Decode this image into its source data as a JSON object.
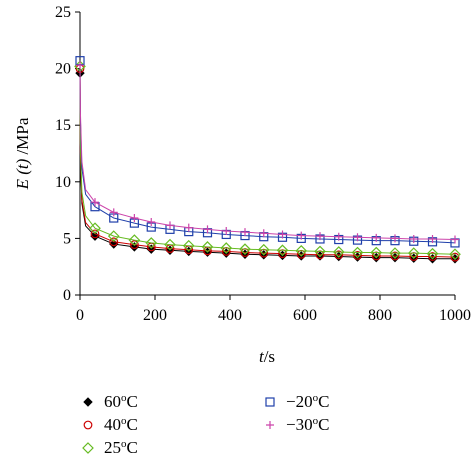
{
  "chart_data": {
    "type": "line",
    "xlabel": {
      "var": "t",
      "unit": "/s"
    },
    "ylabel": {
      "var": "E (t)",
      "unit": " /MPa"
    },
    "xlim": [
      0,
      1000
    ],
    "ylim": [
      0,
      25
    ],
    "xticks": [
      0,
      200,
      400,
      600,
      800,
      1000
    ],
    "yticks": [
      0,
      5,
      10,
      15,
      20,
      25
    ],
    "grid": false,
    "legend_position": "bottom",
    "series": [
      {
        "name": "60oC",
        "label_main": "60",
        "label_sup": "o",
        "label_tail": "C",
        "color": "#000000",
        "marker": "diamond-filled",
        "values": [
          [
            0,
            19.6
          ],
          [
            1,
            12.2
          ],
          [
            5,
            8.1
          ],
          [
            15,
            6.1
          ],
          [
            40,
            5.2
          ],
          [
            90,
            4.5
          ],
          [
            145,
            4.25
          ],
          [
            190,
            4.05
          ],
          [
            240,
            3.95
          ],
          [
            290,
            3.85
          ],
          [
            340,
            3.78
          ],
          [
            390,
            3.7
          ],
          [
            440,
            3.6
          ],
          [
            490,
            3.55
          ],
          [
            540,
            3.5
          ],
          [
            590,
            3.45
          ],
          [
            640,
            3.45
          ],
          [
            690,
            3.4
          ],
          [
            740,
            3.35
          ],
          [
            790,
            3.3
          ],
          [
            840,
            3.3
          ],
          [
            890,
            3.25
          ],
          [
            940,
            3.2
          ],
          [
            1000,
            3.2
          ]
        ]
      },
      {
        "name": "40oC",
        "label_main": "40",
        "label_sup": "o",
        "label_tail": "C",
        "color": "#cc0000",
        "marker": "circle-open",
        "values": [
          [
            0,
            20.0
          ],
          [
            1,
            12.6
          ],
          [
            5,
            8.4
          ],
          [
            15,
            6.4
          ],
          [
            40,
            5.4
          ],
          [
            90,
            4.7
          ],
          [
            145,
            4.45
          ],
          [
            190,
            4.25
          ],
          [
            240,
            4.1
          ],
          [
            290,
            4.0
          ],
          [
            340,
            3.9
          ],
          [
            390,
            3.85
          ],
          [
            440,
            3.75
          ],
          [
            490,
            3.7
          ],
          [
            540,
            3.65
          ],
          [
            590,
            3.6
          ],
          [
            640,
            3.55
          ],
          [
            690,
            3.55
          ],
          [
            740,
            3.5
          ],
          [
            790,
            3.45
          ],
          [
            840,
            3.45
          ],
          [
            890,
            3.4
          ],
          [
            940,
            3.4
          ],
          [
            1000,
            3.35
          ]
        ]
      },
      {
        "name": "25oC",
        "label_main": "25",
        "label_sup": "o",
        "label_tail": "C",
        "color": "#66bb22",
        "marker": "diamond-open",
        "values": [
          [
            0,
            20.2
          ],
          [
            1,
            13.4
          ],
          [
            5,
            9.1
          ],
          [
            15,
            7.0
          ],
          [
            40,
            5.9
          ],
          [
            90,
            5.2
          ],
          [
            145,
            4.85
          ],
          [
            190,
            4.6
          ],
          [
            240,
            4.45
          ],
          [
            290,
            4.35
          ],
          [
            340,
            4.25
          ],
          [
            390,
            4.15
          ],
          [
            440,
            4.05
          ],
          [
            490,
            4.0
          ],
          [
            540,
            3.95
          ],
          [
            590,
            3.9
          ],
          [
            640,
            3.85
          ],
          [
            690,
            3.8
          ],
          [
            740,
            3.75
          ],
          [
            790,
            3.75
          ],
          [
            840,
            3.7
          ],
          [
            890,
            3.7
          ],
          [
            940,
            3.65
          ],
          [
            1000,
            3.6
          ]
        ]
      },
      {
        "name": "−20oC",
        "label_main": "−20",
        "label_sup": "o",
        "label_tail": "C",
        "color": "#1f3faa",
        "marker": "square-open",
        "values": [
          [
            0,
            20.7
          ],
          [
            1,
            15.6
          ],
          [
            5,
            11.2
          ],
          [
            15,
            8.9
          ],
          [
            40,
            7.8
          ],
          [
            90,
            6.8
          ],
          [
            145,
            6.35
          ],
          [
            190,
            6.0
          ],
          [
            240,
            5.8
          ],
          [
            290,
            5.6
          ],
          [
            340,
            5.5
          ],
          [
            390,
            5.35
          ],
          [
            440,
            5.25
          ],
          [
            490,
            5.15
          ],
          [
            540,
            5.1
          ],
          [
            590,
            5.0
          ],
          [
            640,
            4.95
          ],
          [
            690,
            4.9
          ],
          [
            740,
            4.85
          ],
          [
            790,
            4.8
          ],
          [
            840,
            4.8
          ],
          [
            890,
            4.75
          ],
          [
            940,
            4.7
          ],
          [
            1000,
            4.6
          ]
        ]
      },
      {
        "name": "−30oC",
        "label_main": "−30",
        "label_sup": "o",
        "label_tail": "C",
        "color": "#cc44aa",
        "marker": "plus",
        "values": [
          [
            0,
            20.3
          ],
          [
            1,
            16.2
          ],
          [
            5,
            11.8
          ],
          [
            15,
            9.3
          ],
          [
            40,
            8.2
          ],
          [
            90,
            7.3
          ],
          [
            145,
            6.8
          ],
          [
            190,
            6.45
          ],
          [
            240,
            6.15
          ],
          [
            290,
            5.95
          ],
          [
            340,
            5.8
          ],
          [
            390,
            5.65
          ],
          [
            440,
            5.55
          ],
          [
            490,
            5.45
          ],
          [
            540,
            5.35
          ],
          [
            590,
            5.25
          ],
          [
            640,
            5.2
          ],
          [
            690,
            5.15
          ],
          [
            740,
            5.1
          ],
          [
            790,
            5.05
          ],
          [
            840,
            5.0
          ],
          [
            890,
            4.95
          ],
          [
            940,
            4.95
          ],
          [
            1000,
            4.9
          ]
        ]
      }
    ]
  }
}
